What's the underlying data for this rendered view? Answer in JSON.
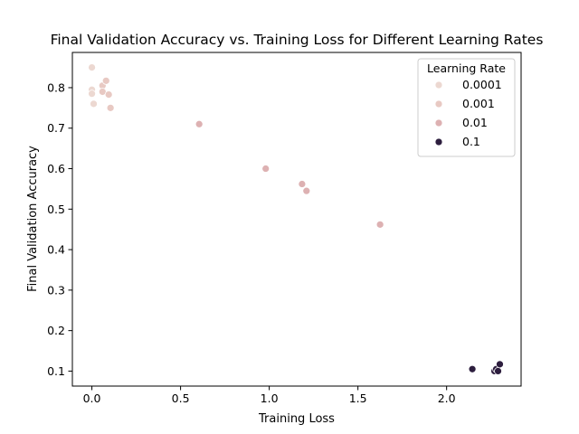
{
  "chart_data": {
    "type": "scatter",
    "title": "Final Validation Accuracy vs. Training Loss for Different Learning Rates",
    "xlabel": "Training Loss",
    "ylabel": "Final Validation Accuracy",
    "xlim": [
      -0.11,
      2.42
    ],
    "ylim": [
      0.063,
      0.887
    ],
    "xticks": [
      0.0,
      0.5,
      1.0,
      1.5,
      2.0
    ],
    "xtick_labels": [
      "0.0",
      "0.5",
      "1.0",
      "1.5",
      "2.0"
    ],
    "yticks": [
      0.1,
      0.2,
      0.3,
      0.4,
      0.5,
      0.6,
      0.7,
      0.8
    ],
    "ytick_labels": [
      "0.1",
      "0.2",
      "0.3",
      "0.4",
      "0.5",
      "0.6",
      "0.7",
      "0.8"
    ],
    "grid": false,
    "legend": {
      "title": "Learning Rate",
      "placement": "top-right",
      "entries": [
        {
          "label": "0.0001",
          "color": "#ecd8d1"
        },
        {
          "label": "0.001",
          "color": "#e8c9c3"
        },
        {
          "label": "0.01",
          "color": "#ddb1b2"
        },
        {
          "label": "0.1",
          "color": "#2d1e3e"
        }
      ]
    },
    "series": [
      {
        "name": "0.0001",
        "color": "#ecd8d1",
        "points": [
          {
            "x": 0.0,
            "y": 0.85
          },
          {
            "x": 0.0,
            "y": 0.795
          },
          {
            "x": 0.0,
            "y": 0.785
          },
          {
            "x": 0.01,
            "y": 0.76
          }
        ]
      },
      {
        "name": "0.001",
        "color": "#e8c9c3",
        "points": [
          {
            "x": 0.06,
            "y": 0.805
          },
          {
            "x": 0.06,
            "y": 0.79
          },
          {
            "x": 0.08,
            "y": 0.817
          },
          {
            "x": 0.095,
            "y": 0.783
          },
          {
            "x": 0.105,
            "y": 0.75
          }
        ]
      },
      {
        "name": "0.01",
        "color": "#ddb1b2",
        "points": [
          {
            "x": 0.605,
            "y": 0.71
          },
          {
            "x": 0.98,
            "y": 0.6
          },
          {
            "x": 1.185,
            "y": 0.562
          },
          {
            "x": 1.21,
            "y": 0.545
          },
          {
            "x": 1.625,
            "y": 0.462
          }
        ]
      },
      {
        "name": "0.1",
        "color": "#2d1e3e",
        "points": [
          {
            "x": 2.145,
            "y": 0.105
          },
          {
            "x": 2.27,
            "y": 0.1
          },
          {
            "x": 2.28,
            "y": 0.105
          },
          {
            "x": 2.29,
            "y": 0.1
          },
          {
            "x": 2.3,
            "y": 0.117
          }
        ]
      }
    ]
  }
}
